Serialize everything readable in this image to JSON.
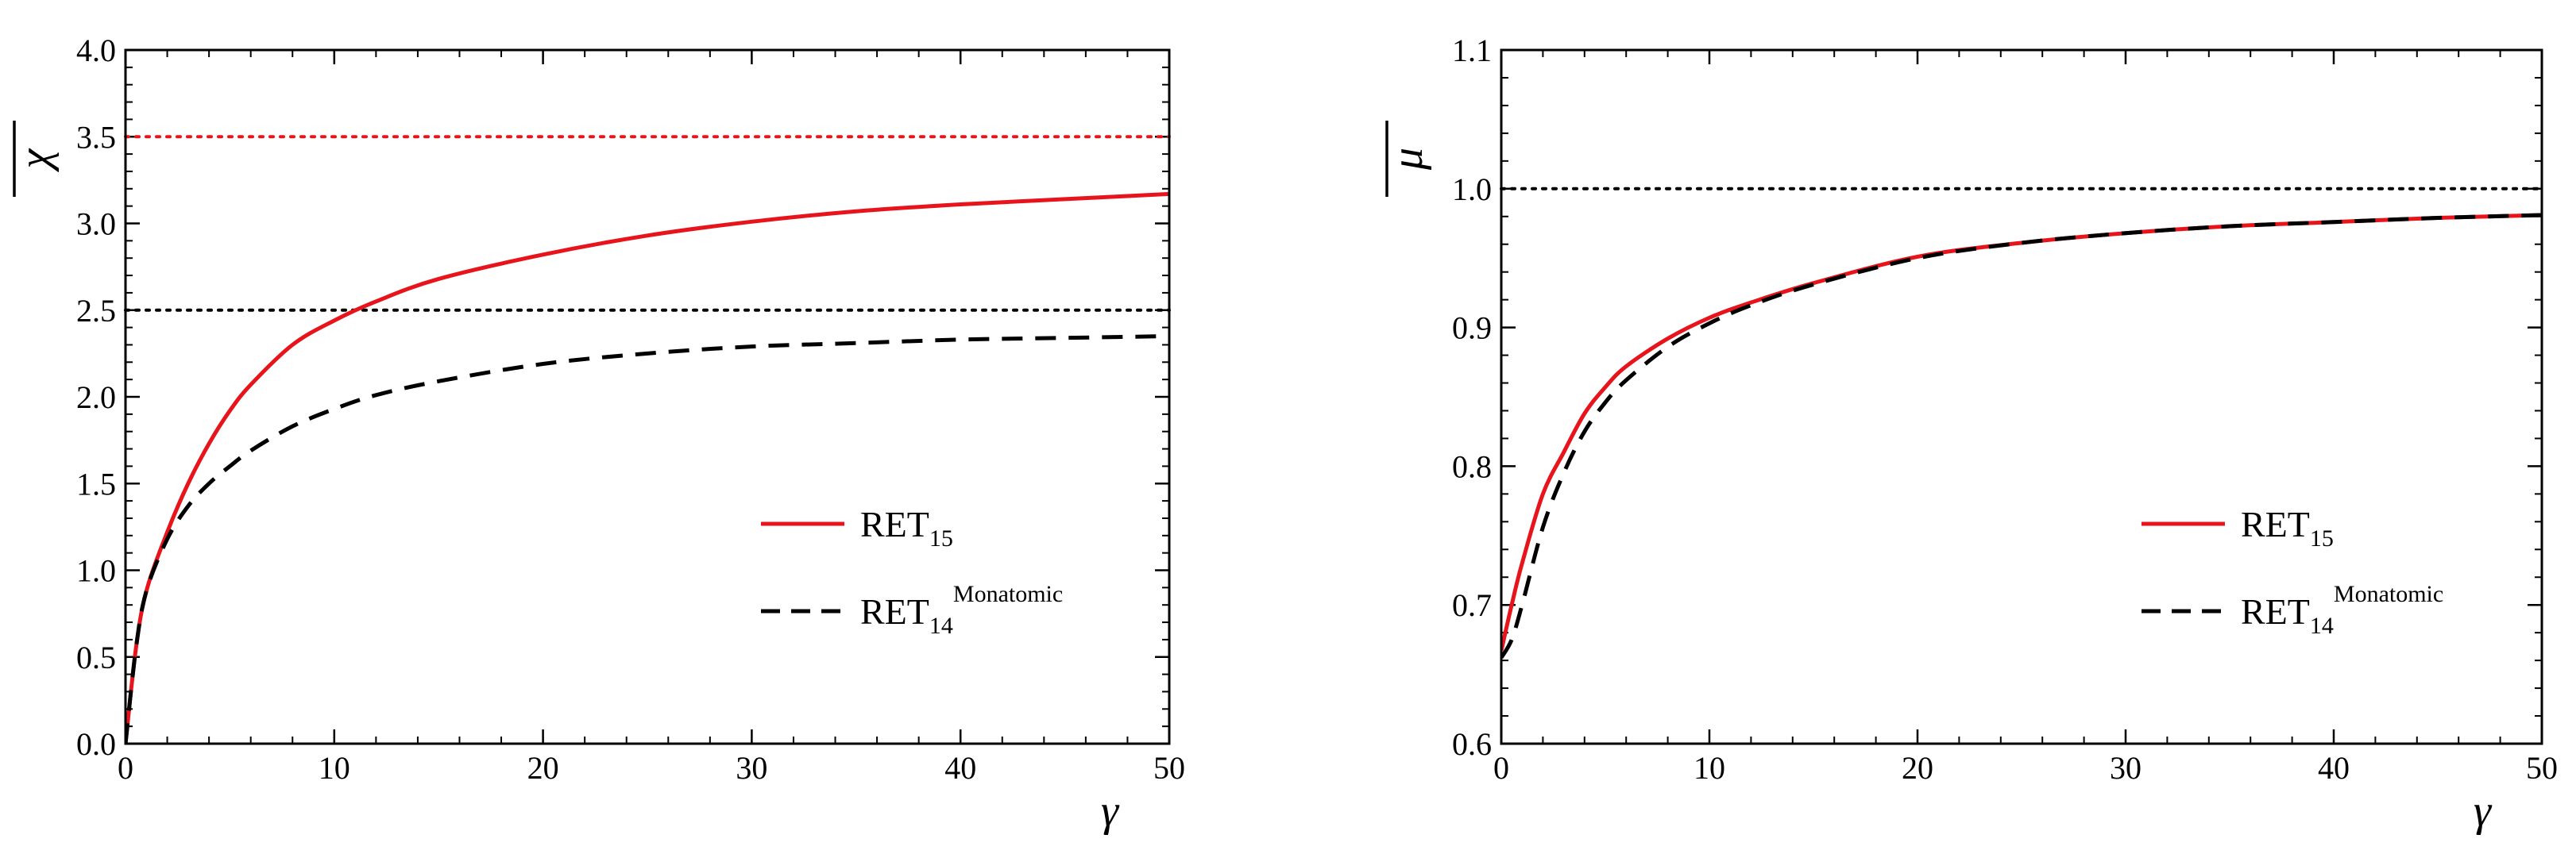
{
  "chart_data": [
    {
      "type": "line",
      "ylabel": "χ",
      "xlabel": "γ",
      "xlim": [
        0,
        50
      ],
      "ylim": [
        0,
        4.0
      ],
      "xticks": [
        0,
        10,
        20,
        30,
        40,
        50
      ],
      "xtick_labels": [
        "0",
        "10",
        "20",
        "30",
        "40",
        "50"
      ],
      "yticks": [
        0,
        0.5,
        1.0,
        1.5,
        2.0,
        2.5,
        3.0,
        3.5,
        4.0
      ],
      "ytick_labels": [
        "0.0",
        "0.5",
        "1.0",
        "1.5",
        "2.0",
        "2.5",
        "3.0",
        "3.5",
        "4.0"
      ],
      "hlines": [
        {
          "y": 3.5,
          "color": "#e8141c",
          "style": "dotted"
        },
        {
          "y": 2.5,
          "color": "#000000",
          "style": "dotted"
        }
      ],
      "series": [
        {
          "name": "RET15",
          "legend_main": "RET",
          "legend_sub": "15",
          "legend_sup": "",
          "color": "#e8141c",
          "style": "solid",
          "x": [
            0,
            0.5,
            1,
            2,
            3,
            4,
            5,
            6,
            8,
            10,
            12,
            15,
            20,
            25,
            30,
            35,
            40,
            45,
            50
          ],
          "y": [
            0,
            0.55,
            0.88,
            1.22,
            1.5,
            1.73,
            1.92,
            2.07,
            2.3,
            2.44,
            2.55,
            2.68,
            2.82,
            2.93,
            3.01,
            3.07,
            3.11,
            3.14,
            3.17
          ]
        },
        {
          "name": "RET14 Monatomic",
          "legend_main": "RET",
          "legend_sub": "14",
          "legend_sup": "Monatomic",
          "color": "#000000",
          "style": "dashed",
          "x": [
            0,
            0.5,
            1,
            2,
            3,
            4,
            5,
            6,
            8,
            10,
            12,
            15,
            20,
            25,
            30,
            35,
            40,
            45,
            50
          ],
          "y": [
            0,
            0.55,
            0.88,
            1.18,
            1.37,
            1.5,
            1.6,
            1.69,
            1.83,
            1.93,
            2.01,
            2.09,
            2.19,
            2.25,
            2.29,
            2.31,
            2.33,
            2.34,
            2.35
          ]
        }
      ],
      "legend_position": "center-right"
    },
    {
      "type": "line",
      "ylabel": "μ",
      "xlabel": "γ",
      "xlim": [
        0,
        50
      ],
      "ylim": [
        0.6,
        1.1
      ],
      "xticks": [
        0,
        10,
        20,
        30,
        40,
        50
      ],
      "xtick_labels": [
        "0",
        "10",
        "20",
        "30",
        "40",
        "50"
      ],
      "yticks": [
        0.6,
        0.7,
        0.8,
        0.9,
        1.0,
        1.1
      ],
      "ytick_labels": [
        "0.6",
        "0.7",
        "0.8",
        "0.9",
        "1.0",
        "1.1"
      ],
      "hlines": [
        {
          "y": 1.0,
          "color": "#000000",
          "style": "dotted"
        }
      ],
      "series": [
        {
          "name": "RET15",
          "legend_main": "RET",
          "legend_sub": "15",
          "legend_sup": "",
          "color": "#e8141c",
          "style": "solid",
          "x": [
            0,
            0.5,
            1,
            2,
            3,
            4,
            5,
            6,
            8,
            10,
            12,
            15,
            20,
            25,
            30,
            35,
            40,
            45,
            50
          ],
          "y": [
            0.667,
            0.7,
            0.73,
            0.78,
            0.81,
            0.838,
            0.857,
            0.872,
            0.892,
            0.907,
            0.918,
            0.932,
            0.951,
            0.961,
            0.968,
            0.973,
            0.976,
            0.979,
            0.981
          ]
        },
        {
          "name": "RET14 Monatomic",
          "legend_main": "RET",
          "legend_sub": "14",
          "legend_sup": "Monatomic",
          "color": "#000000",
          "style": "dashed",
          "x": [
            0,
            0.5,
            1,
            2,
            3,
            4,
            5,
            6,
            8,
            10,
            12,
            15,
            20,
            25,
            30,
            35,
            40,
            45,
            50
          ],
          "y": [
            0.662,
            0.675,
            0.7,
            0.756,
            0.795,
            0.825,
            0.846,
            0.862,
            0.886,
            0.903,
            0.916,
            0.931,
            0.95,
            0.961,
            0.968,
            0.973,
            0.976,
            0.979,
            0.981
          ]
        }
      ],
      "legend_position": "center-right"
    }
  ]
}
